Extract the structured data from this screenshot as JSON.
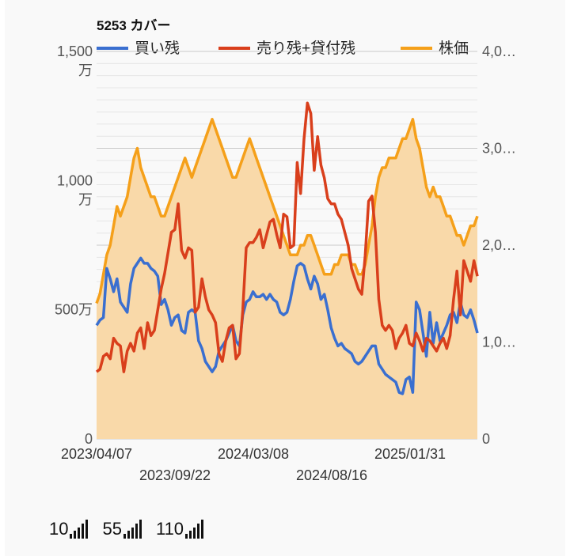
{
  "chart_data": {
    "type": "line",
    "title": "5253 カバー",
    "legend": [
      {
        "name": "買い残",
        "color": "#3a6fd0"
      },
      {
        "name": "売り残+貸付残",
        "color": "#d93f1c"
      },
      {
        "name": "株価",
        "color": "#f5a01a"
      }
    ],
    "left_axis": {
      "ticks": [
        "0",
        "500万",
        "1,000\n万",
        "1,500\n万"
      ],
      "values": [
        0,
        5000000,
        10000000,
        15000000
      ],
      "ylim": [
        0,
        15000000
      ]
    },
    "right_axis": {
      "ticks": [
        "0",
        "1,0…",
        "2,0…",
        "3,0…",
        "4,0…"
      ],
      "values": [
        0,
        1000,
        2000,
        3000,
        4000
      ],
      "ylim": [
        0,
        4000
      ]
    },
    "x_ticks_row1": [
      "2023/04/07",
      "2024/03/08",
      "2025/01/31"
    ],
    "x_ticks_row2": [
      "2023/09/22",
      "2024/08/16"
    ],
    "area_color": "#f9d9a9",
    "series": [
      {
        "name": "買い残",
        "axis": "left",
        "values": [
          4400000,
          4600000,
          4700000,
          6600000,
          6200000,
          5700000,
          6200000,
          5300000,
          5100000,
          4900000,
          6000000,
          6600000,
          6800000,
          7000000,
          6800000,
          6800000,
          6600000,
          6500000,
          6300000,
          5200000,
          5400000,
          5000000,
          4400000,
          4700000,
          4800000,
          4200000,
          4100000,
          4900000,
          5000000,
          4900000,
          3800000,
          3500000,
          3000000,
          2800000,
          2600000,
          2800000,
          3400000,
          3600000,
          3800000,
          4100000,
          4400000,
          3800000,
          3600000,
          4800000,
          5300000,
          5400000,
          5700000,
          5500000,
          5500000,
          5600000,
          5400000,
          5600000,
          5400000,
          5300000,
          4900000,
          4800000,
          4900000,
          5400000,
          6100000,
          6700000,
          6800000,
          6700000,
          6200000,
          5800000,
          6300000,
          6000000,
          5400000,
          5600000,
          5000000,
          4300000,
          3900000,
          3600000,
          3700000,
          3500000,
          3400000,
          3300000,
          3000000,
          2900000,
          3000000,
          3200000,
          3400000,
          3600000,
          3600000,
          2900000,
          2700000,
          2500000,
          2400000,
          2300000,
          2200000,
          1800000,
          1750000,
          2300000,
          2400000,
          1800000,
          5300000,
          5000000,
          4100000,
          3200000,
          4900000,
          3700000,
          4500000,
          3800000,
          4100000,
          4400000,
          4800000,
          4900000,
          4500000,
          5300000,
          4800000,
          4700000,
          5000000,
          4600000,
          4100000
        ]
      },
      {
        "name": "売り残+貸付残",
        "axis": "left",
        "values": [
          2600000,
          2700000,
          3200000,
          3300000,
          3100000,
          3900000,
          3700000,
          3600000,
          2600000,
          3400000,
          3700000,
          3400000,
          4100000,
          4300000,
          3500000,
          4500000,
          4000000,
          4200000,
          5000000,
          5800000,
          6400000,
          7200000,
          8000000,
          8100000,
          9100000,
          7300000,
          7000000,
          7400000,
          7300000,
          4900000,
          5100000,
          6200000,
          5500000,
          5000000,
          4800000,
          4500000,
          3300000,
          3000000,
          3800000,
          4300000,
          4400000,
          3100000,
          3300000,
          5000000,
          7400000,
          7600000,
          7600000,
          7800000,
          8100000,
          7400000,
          7900000,
          8400000,
          8500000,
          7900000,
          7400000,
          8700000,
          8600000,
          7400000,
          7500000,
          10700000,
          9500000,
          11600000,
          13000000,
          12600000,
          10400000,
          11700000,
          10600000,
          10100000,
          9300000,
          9100000,
          9100000,
          8700000,
          8500000,
          8000000,
          7500000,
          6600000,
          6200000,
          5800000,
          5600000,
          7100000,
          9200000,
          9400000,
          8000000,
          5400000,
          4400000,
          4200000,
          4400000,
          4200000,
          3500000,
          3900000,
          4100000,
          4400000,
          3700000,
          3600000,
          4100000,
          3800000,
          3400000,
          3900000,
          3800000,
          3600000,
          3400000,
          3700000,
          3900000,
          3500000,
          4000000,
          5400000,
          6500000,
          4800000,
          6900000,
          6500000,
          6100000,
          6900000,
          6300000
        ]
      },
      {
        "name": "株価",
        "axis": "right",
        "values": [
          1400,
          1500,
          1700,
          1900,
          2000,
          2200,
          2400,
          2300,
          2400,
          2500,
          2700,
          2900,
          3000,
          2800,
          2700,
          2600,
          2500,
          2500,
          2400,
          2300,
          2300,
          2400,
          2500,
          2600,
          2700,
          2800,
          2900,
          2800,
          2700,
          2800,
          2900,
          3000,
          3100,
          3200,
          3300,
          3200,
          3100,
          3000,
          2900,
          2800,
          2700,
          2700,
          2800,
          2900,
          3000,
          3100,
          3000,
          2900,
          2800,
          2700,
          2600,
          2500,
          2400,
          2300,
          2200,
          2100,
          2000,
          1900,
          1900,
          1900,
          2000,
          2000,
          2100,
          2100,
          2000,
          1900,
          1800,
          1700,
          1700,
          1700,
          1800,
          1800,
          1900,
          1900,
          1900,
          1800,
          1800,
          1700,
          1700,
          1800,
          2000,
          2200,
          2500,
          2700,
          2800,
          2800,
          2900,
          2900,
          2900,
          3000,
          3100,
          3100,
          3200,
          3300,
          3100,
          3000,
          2800,
          2600,
          2500,
          2600,
          2500,
          2500,
          2400,
          2300,
          2300,
          2200,
          2100,
          2100,
          2000,
          2100,
          2200,
          2200,
          2300
        ]
      }
    ]
  },
  "footer": {
    "buttons": [
      {
        "label": "10"
      },
      {
        "label": "55"
      },
      {
        "label": "110"
      }
    ]
  }
}
